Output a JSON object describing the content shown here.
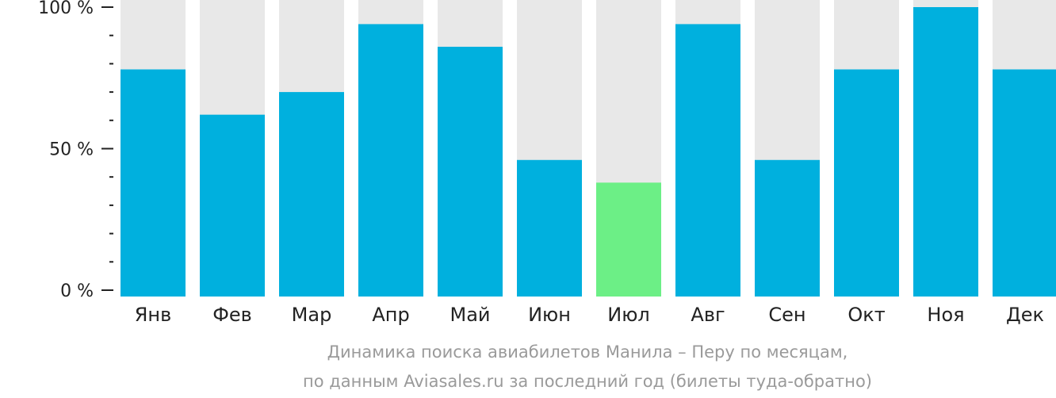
{
  "chart_data": {
    "type": "bar",
    "categories": [
      "Янв",
      "Фев",
      "Мар",
      "Апр",
      "Май",
      "Июн",
      "Июл",
      "Авг",
      "Сен",
      "Окт",
      "Ноя",
      "Дек"
    ],
    "values": [
      78,
      62,
      70,
      94,
      86,
      46,
      38,
      94,
      46,
      78,
      100,
      78
    ],
    "ylim": [
      0,
      100
    ],
    "yticks": [
      {
        "value": 0,
        "label": "0 %"
      },
      {
        "value": 50,
        "label": "50 %"
      },
      {
        "value": 100,
        "label": "100 %"
      }
    ],
    "minor_tick_step": 10,
    "title": "",
    "xlabel": "",
    "ylabel": "",
    "caption_line1": "Динамика поиска авиабилетов Манила – Перу по месяцам,",
    "caption_line2": "по данным Aviasales.ru за последний год (билеты туда-обратно)",
    "highlight_category": "Июл",
    "grid": false,
    "colors": {
      "bar": "#00b0de",
      "highlight": "#6cef86",
      "track": "#e8e8e8",
      "axis": "#222222",
      "caption": "#9a9a9a"
    }
  }
}
